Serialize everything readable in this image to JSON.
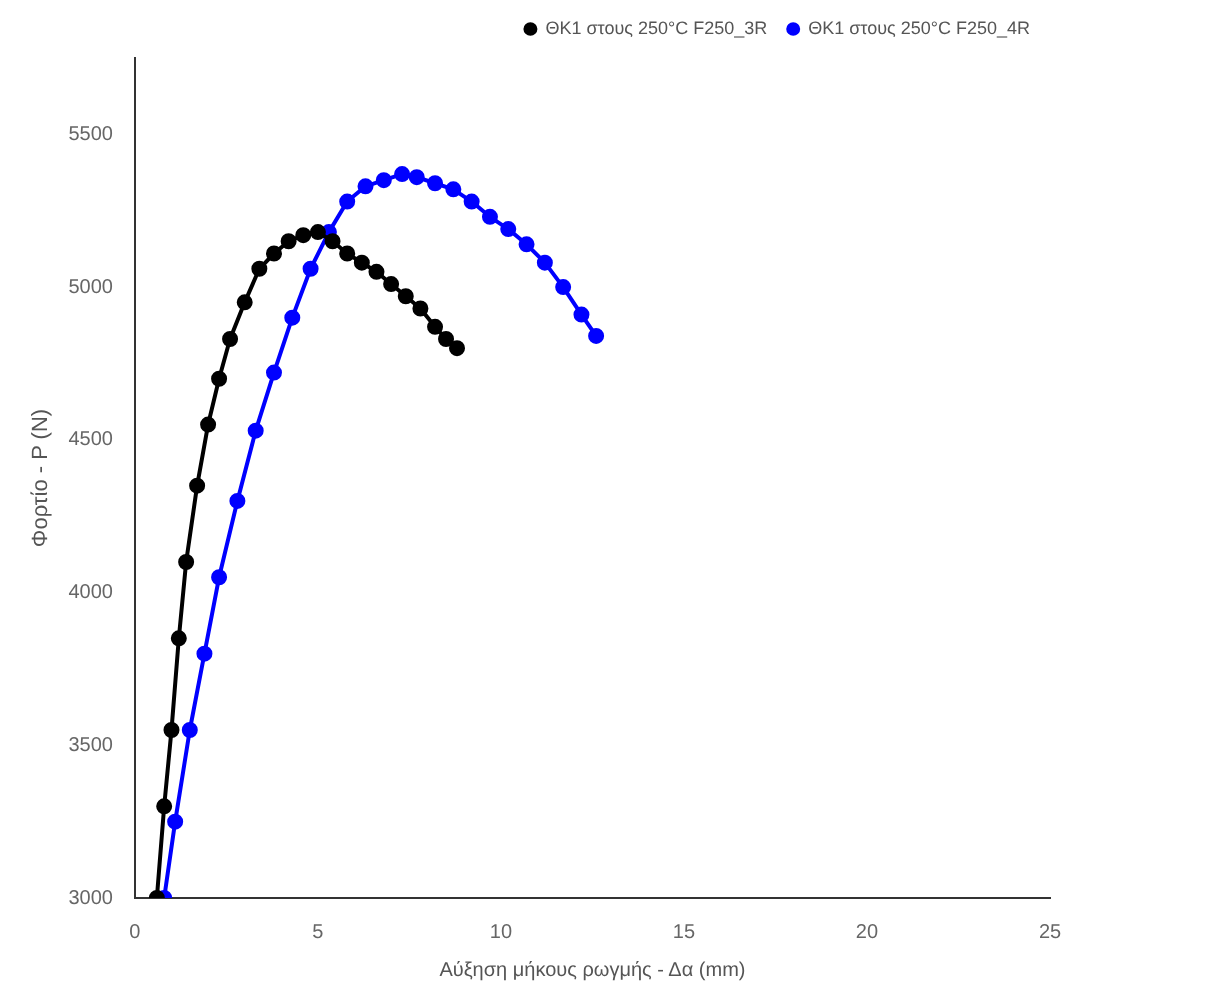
{
  "chart_data": {
    "type": "line",
    "xlabel": "Αύξηση μήκους ρωγμής - Δα (mm)",
    "ylabel": "Φορτίο - P (N)",
    "xlim": [
      0,
      25
    ],
    "xticks": [
      0,
      5,
      10,
      15,
      20,
      25
    ],
    "ylim": [
      3000,
      5750
    ],
    "yticks": [
      3000,
      3500,
      4000,
      4500,
      5000,
      5500
    ],
    "marker": "circle",
    "legend": "top right",
    "grid": false,
    "series": [
      {
        "name": "ΘΚ1 στους 250°C F250_3R",
        "color": "#000000",
        "x": [
          0.6,
          0.8,
          1.0,
          1.2,
          1.4,
          1.7,
          2.0,
          2.3,
          2.6,
          3.0,
          3.4,
          3.8,
          4.2,
          4.6,
          5.0,
          5.4,
          5.8,
          6.2,
          6.6,
          7.0,
          7.4,
          7.8,
          8.2,
          8.5,
          8.8
        ],
        "values": [
          3000,
          3300,
          3550,
          3850,
          4100,
          4350,
          4550,
          4700,
          4830,
          4950,
          5060,
          5110,
          5150,
          5170,
          5180,
          5150,
          5110,
          5080,
          5050,
          5010,
          4970,
          4930,
          4870,
          4830,
          4800
        ]
      },
      {
        "name": "ΘΚ1 στους 250°C F250_4R",
        "color": "#0000ff",
        "x": [
          0.8,
          1.1,
          1.5,
          1.9,
          2.3,
          2.8,
          3.3,
          3.8,
          4.3,
          4.8,
          5.3,
          5.8,
          6.3,
          6.8,
          7.3,
          7.7,
          8.2,
          8.7,
          9.2,
          9.7,
          10.2,
          10.7,
          11.2,
          11.7,
          12.2,
          12.6
        ],
        "values": [
          3000,
          3250,
          3550,
          3800,
          4050,
          4300,
          4530,
          4720,
          4900,
          5060,
          5180,
          5280,
          5330,
          5350,
          5370,
          5360,
          5340,
          5320,
          5280,
          5230,
          5190,
          5140,
          5080,
          5000,
          4910,
          4840
        ]
      }
    ]
  }
}
